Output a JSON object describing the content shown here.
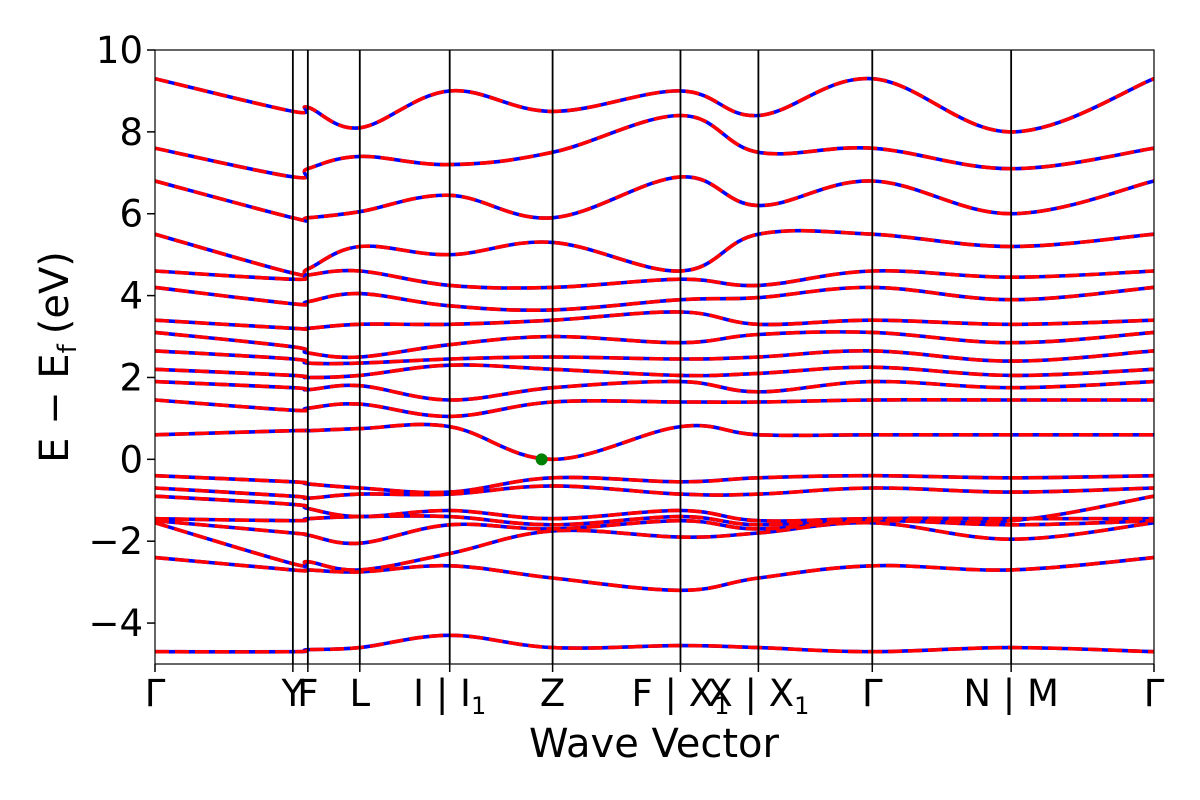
{
  "chart_data": {
    "type": "line",
    "title": "",
    "xlabel": "Wave Vector",
    "ylabel": "E − E",
    "ylabel_subscript": "f",
    "ylabel_unit": "(eV)",
    "ylim": [
      -5,
      10
    ],
    "xlim": [
      0,
      1
    ],
    "grid": false,
    "y_ticks": [
      -4,
      -2,
      0,
      2,
      4,
      6,
      8,
      10
    ],
    "y_tick_labels": [
      "−4",
      "−2",
      "0",
      "2",
      "4",
      "6",
      "8",
      "10"
    ],
    "kpoints": [
      {
        "pos": 0.0,
        "base": "Γ",
        "sub": ""
      },
      {
        "pos": 0.138,
        "base": "Y",
        "sub": ""
      },
      {
        "pos": 0.153,
        "base": "F",
        "sub": ""
      },
      {
        "pos": 0.205,
        "base": "L",
        "sub": ""
      },
      {
        "pos": 0.295,
        "base": "I | I",
        "sub": "1"
      },
      {
        "pos": 0.398,
        "base": "Z",
        "sub": ""
      },
      {
        "pos": 0.526,
        "base": "F | X",
        "sub": "1"
      },
      {
        "pos": 0.604,
        "base": "X | X",
        "sub": "1"
      },
      {
        "pos": 0.718,
        "base": "Γ",
        "sub": ""
      },
      {
        "pos": 0.857,
        "base": "N | M",
        "sub": ""
      },
      {
        "pos": 1.0,
        "base": "Γ",
        "sub": ""
      }
    ],
    "segment_breaks": [
      0.526,
      0.857
    ],
    "series": [
      {
        "color": "#0000ff",
        "style": "solid",
        "values_at_kpoints": [
          [
            -4.7,
            -4.7,
            -4.65,
            -4.6,
            -4.3,
            -4.6,
            -4.55,
            -4.6,
            -4.7,
            -4.6,
            -4.7
          ],
          [
            -2.4,
            -2.7,
            -2.7,
            -2.75,
            -2.6,
            -2.9,
            -3.2,
            -2.9,
            -2.6,
            -2.7,
            -2.4
          ],
          [
            -1.55,
            -2.55,
            -2.5,
            -2.7,
            -2.3,
            -1.75,
            -1.9,
            -1.8,
            -1.55,
            -1.95,
            -1.55
          ],
          [
            -1.5,
            -1.8,
            -1.85,
            -2.05,
            -1.6,
            -1.7,
            -1.5,
            -1.7,
            -1.5,
            -1.6,
            -1.5
          ],
          [
            -1.45,
            -1.5,
            -1.45,
            -1.4,
            -1.4,
            -1.6,
            -1.4,
            -1.6,
            -1.45,
            -1.45,
            -1.45
          ],
          [
            -0.9,
            -1.1,
            -1.2,
            -1.4,
            -1.25,
            -1.45,
            -1.25,
            -1.5,
            -1.45,
            -1.5,
            -0.9
          ],
          [
            -0.7,
            -0.9,
            -0.95,
            -0.85,
            -0.85,
            -0.65,
            -0.85,
            -0.85,
            -0.7,
            -0.8,
            -0.7
          ],
          [
            -0.4,
            -0.55,
            -0.6,
            -0.7,
            -0.8,
            -0.45,
            -0.55,
            -0.45,
            -0.4,
            -0.45,
            -0.4
          ],
          [
            0.6,
            0.7,
            0.7,
            0.75,
            0.8,
            0.0,
            0.8,
            0.6,
            0.6,
            0.6,
            0.6
          ],
          [
            1.45,
            1.2,
            1.25,
            1.35,
            1.05,
            1.4,
            1.4,
            1.4,
            1.45,
            1.45,
            1.45
          ],
          [
            1.9,
            1.75,
            1.7,
            1.8,
            1.45,
            1.75,
            1.9,
            1.65,
            1.9,
            1.75,
            1.9
          ],
          [
            2.2,
            2.05,
            2.0,
            2.05,
            2.3,
            2.2,
            2.05,
            2.1,
            2.25,
            2.05,
            2.2
          ],
          [
            2.65,
            2.45,
            2.35,
            2.35,
            2.45,
            2.5,
            2.45,
            2.5,
            2.65,
            2.4,
            2.65
          ],
          [
            3.1,
            2.75,
            2.6,
            2.5,
            2.8,
            3.0,
            2.85,
            3.05,
            3.1,
            2.85,
            3.1
          ],
          [
            3.4,
            3.2,
            3.2,
            3.3,
            3.3,
            3.4,
            3.6,
            3.3,
            3.4,
            3.3,
            3.4
          ],
          [
            4.2,
            3.8,
            3.85,
            4.05,
            3.75,
            3.65,
            3.9,
            3.95,
            4.2,
            3.9,
            4.2
          ],
          [
            4.6,
            4.4,
            4.5,
            4.6,
            4.25,
            4.2,
            4.4,
            4.25,
            4.6,
            4.45,
            4.6
          ],
          [
            5.5,
            4.55,
            4.65,
            5.2,
            5.0,
            5.3,
            4.6,
            5.5,
            5.5,
            5.2,
            5.5
          ],
          [
            6.8,
            5.9,
            5.9,
            6.05,
            6.45,
            5.9,
            6.9,
            6.2,
            6.8,
            6.0,
            6.8
          ],
          [
            7.6,
            6.9,
            7.1,
            7.4,
            7.2,
            7.5,
            8.4,
            7.5,
            7.6,
            7.1,
            7.6
          ],
          [
            9.3,
            8.5,
            8.6,
            8.1,
            9.0,
            8.5,
            9.0,
            8.4,
            9.3,
            8.0,
            9.3
          ]
        ]
      },
      {
        "color": "#ff0000",
        "style": "dashed",
        "values_at_kpoints": [
          [
            -4.7,
            -4.7,
            -4.65,
            -4.6,
            -4.3,
            -4.6,
            -4.55,
            -4.6,
            -4.7,
            -4.6,
            -4.7
          ],
          [
            -2.4,
            -2.7,
            -2.7,
            -2.75,
            -2.6,
            -2.9,
            -3.2,
            -2.9,
            -2.6,
            -2.7,
            -2.4
          ],
          [
            -1.55,
            -2.55,
            -2.5,
            -2.7,
            -2.3,
            -1.75,
            -1.9,
            -1.8,
            -1.55,
            -1.95,
            -1.55
          ],
          [
            -1.5,
            -1.8,
            -1.85,
            -2.05,
            -1.6,
            -1.7,
            -1.5,
            -1.7,
            -1.5,
            -1.6,
            -1.5
          ],
          [
            -1.45,
            -1.5,
            -1.45,
            -1.4,
            -1.4,
            -1.6,
            -1.4,
            -1.6,
            -1.45,
            -1.45,
            -1.45
          ],
          [
            -0.9,
            -1.1,
            -1.2,
            -1.4,
            -1.25,
            -1.45,
            -1.25,
            -1.5,
            -1.45,
            -1.5,
            -0.9
          ],
          [
            -0.7,
            -0.9,
            -0.95,
            -0.85,
            -0.85,
            -0.65,
            -0.85,
            -0.85,
            -0.7,
            -0.8,
            -0.7
          ],
          [
            -0.4,
            -0.55,
            -0.6,
            -0.7,
            -0.8,
            -0.45,
            -0.55,
            -0.45,
            -0.4,
            -0.45,
            -0.4
          ],
          [
            0.6,
            0.7,
            0.7,
            0.75,
            0.8,
            0.0,
            0.8,
            0.6,
            0.6,
            0.6,
            0.6
          ],
          [
            1.45,
            1.2,
            1.25,
            1.35,
            1.05,
            1.4,
            1.4,
            1.4,
            1.45,
            1.45,
            1.45
          ],
          [
            1.9,
            1.75,
            1.7,
            1.8,
            1.45,
            1.75,
            1.9,
            1.65,
            1.9,
            1.75,
            1.9
          ],
          [
            2.2,
            2.05,
            2.0,
            2.05,
            2.3,
            2.2,
            2.05,
            2.1,
            2.25,
            2.05,
            2.2
          ],
          [
            2.65,
            2.45,
            2.35,
            2.35,
            2.45,
            2.5,
            2.45,
            2.5,
            2.65,
            2.4,
            2.65
          ],
          [
            3.1,
            2.75,
            2.6,
            2.5,
            2.8,
            3.0,
            2.85,
            3.05,
            3.1,
            2.85,
            3.1
          ],
          [
            3.4,
            3.2,
            3.2,
            3.3,
            3.3,
            3.4,
            3.6,
            3.3,
            3.4,
            3.3,
            3.4
          ],
          [
            4.2,
            3.8,
            3.85,
            4.05,
            3.75,
            3.65,
            3.9,
            3.95,
            4.2,
            3.9,
            4.2
          ],
          [
            4.6,
            4.4,
            4.5,
            4.6,
            4.25,
            4.2,
            4.4,
            4.25,
            4.6,
            4.45,
            4.6
          ],
          [
            5.5,
            4.55,
            4.65,
            5.2,
            5.0,
            5.3,
            4.6,
            5.5,
            5.5,
            5.2,
            5.5
          ],
          [
            6.8,
            5.9,
            5.9,
            6.05,
            6.45,
            5.9,
            6.9,
            6.2,
            6.8,
            6.0,
            6.8
          ],
          [
            7.6,
            6.9,
            7.1,
            7.4,
            7.2,
            7.5,
            8.4,
            7.5,
            7.6,
            7.1,
            7.6
          ],
          [
            9.3,
            8.5,
            8.6,
            8.1,
            9.0,
            8.5,
            9.0,
            8.4,
            9.3,
            8.0,
            9.3
          ]
        ]
      }
    ],
    "marker": {
      "x": 0.387,
      "y": 0.0,
      "color": "#008000"
    }
  }
}
